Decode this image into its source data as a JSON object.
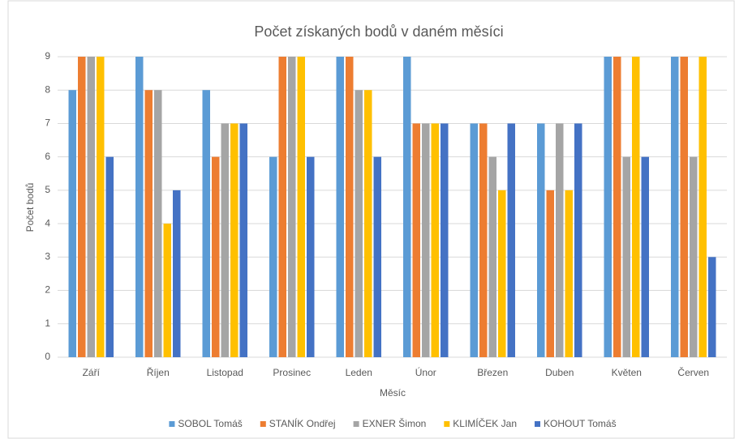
{
  "chart_data": {
    "type": "bar",
    "title": "Počet získaných bodů v daném měsíci",
    "xlabel": "Měsíc",
    "ylabel": "Počet bodů",
    "categories": [
      "Září",
      "Říjen",
      "Listopad",
      "Prosinec",
      "Leden",
      "Únor",
      "Březen",
      "Duben",
      "Květen",
      "Červen"
    ],
    "series": [
      {
        "name": "SOBOL Tomáš",
        "color": "#5b9bd5",
        "values": [
          8,
          9,
          8,
          6,
          9,
          9,
          7,
          7,
          9,
          9
        ]
      },
      {
        "name": "STANÍK Ondřej",
        "color": "#ed7d31",
        "values": [
          9,
          8,
          6,
          9,
          9,
          7,
          7,
          5,
          9,
          9
        ]
      },
      {
        "name": "EXNER Šimon",
        "color": "#a5a5a5",
        "values": [
          9,
          8,
          7,
          9,
          8,
          7,
          6,
          7,
          6,
          6
        ]
      },
      {
        "name": "KLIMÍČEK Jan",
        "color": "#ffc000",
        "values": [
          9,
          4,
          7,
          9,
          8,
          7,
          5,
          5,
          9,
          9
        ]
      },
      {
        "name": "KOHOUT Tomáš",
        "color": "#4472c4",
        "values": [
          6,
          5,
          7,
          6,
          6,
          7,
          7,
          7,
          6,
          3
        ]
      }
    ],
    "ylim": [
      0,
      9
    ],
    "yticks": [
      0,
      1,
      2,
      3,
      4,
      5,
      6,
      7,
      8,
      9
    ],
    "grid": true,
    "legend": "bottom"
  }
}
